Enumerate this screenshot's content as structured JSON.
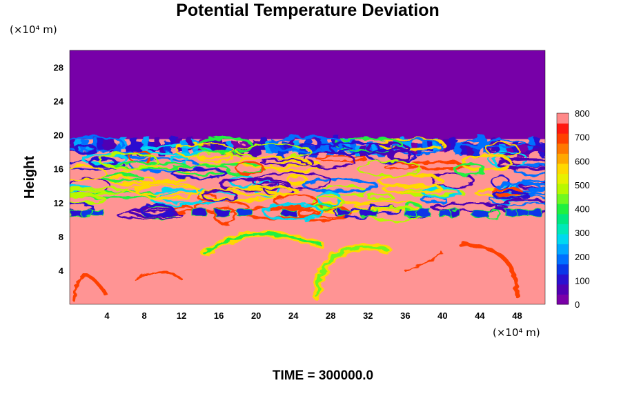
{
  "chart_data": {
    "type": "heatmap",
    "title": "Potential Temperature Deviation",
    "xlabel": "",
    "ylabel": "Height",
    "x_unit": "(×10⁴ m)",
    "y_unit": "(×10⁴ m)",
    "x_ticks": [
      "4",
      "8",
      "12",
      "16",
      "20",
      "24",
      "28",
      "32",
      "36",
      "40",
      "44",
      "48"
    ],
    "y_ticks": [
      "4",
      "8",
      "12",
      "16",
      "20",
      "24",
      "28"
    ],
    "xlim": [
      0,
      51
    ],
    "ylim": [
      0,
      30
    ],
    "colorbar": {
      "ticks": [
        "800",
        "700",
        "600",
        "500",
        "400",
        "300",
        "200",
        "100",
        "0"
      ],
      "range": [
        0,
        800
      ],
      "colors": [
        "#7a00a8",
        "#5000b4",
        "#2a10d0",
        "#0a36e8",
        "#0070ff",
        "#00a8ff",
        "#00d8f0",
        "#00e8b8",
        "#00e880",
        "#20f040",
        "#70f820",
        "#b8f800",
        "#e8f000",
        "#ffd800",
        "#ffa800",
        "#ff7800",
        "#ff4000",
        "#ff1810",
        "#ff8888"
      ]
    },
    "regions": {
      "upper_layer": {
        "y_range": [
          19.5,
          30
        ],
        "value": 0,
        "color": "#7700a8"
      },
      "lower_layer": {
        "y_range": [
          0,
          19.5
        ],
        "value": 800,
        "color": "#ff9494"
      }
    },
    "grid": false,
    "legend": "colorbar-right"
  },
  "footer": {
    "time_label": "TIME = 300000.0"
  }
}
